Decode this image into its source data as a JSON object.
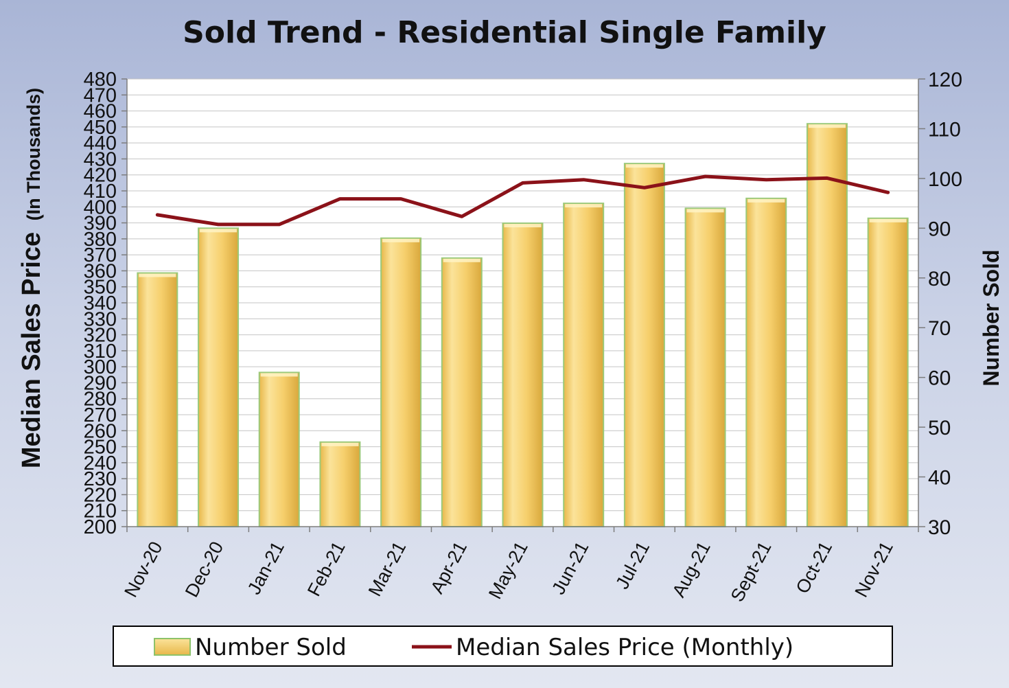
{
  "chart_data": {
    "type": "bar",
    "title": "Sold Trend - Residential Single Family",
    "ylabel": "Median Sales Price",
    "ylabel_suffix": "(In Thousands)",
    "y2label": "Number Sold",
    "categories": [
      "Nov-20",
      "Dec-20",
      "Jan-21",
      "Feb-21",
      "Mar-21",
      "Apr-21",
      "May-21",
      "Jun-21",
      "Jul-21",
      "Aug-21",
      "Sept-21",
      "Oct-21",
      "Nov-21"
    ],
    "ylim": [
      200,
      480
    ],
    "y2lim": [
      30,
      120
    ],
    "series": [
      {
        "name": "Number Sold",
        "type": "bar",
        "axis": "right",
        "color": "#f6cf6c",
        "values": [
          81,
          90,
          61,
          47,
          88,
          84,
          91,
          95,
          103,
          94,
          96,
          111,
          92
        ]
      },
      {
        "name": "Median Sales Price (Monthly)",
        "type": "line",
        "axis": "left",
        "color": "#8b1219",
        "values": [
          395,
          389,
          389,
          405,
          405,
          394,
          415,
          417,
          412,
          419,
          417,
          418,
          409
        ]
      }
    ],
    "grid": true,
    "legend": "bottom"
  }
}
